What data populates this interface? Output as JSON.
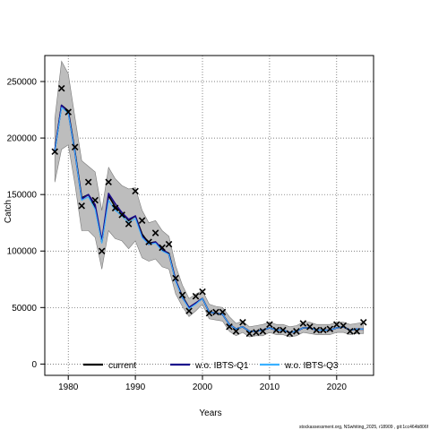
{
  "chart_data": {
    "type": "line",
    "xlabel": "Years",
    "ylabel": "Catch",
    "xlim": [
      1976.5,
      2025.5
    ],
    "ylim": [
      -10000,
      273000
    ],
    "xticks": [
      1980,
      1990,
      2000,
      2010,
      2020
    ],
    "yticks": [
      0,
      50000,
      100000,
      150000,
      200000,
      250000
    ],
    "grid": true,
    "legend_position": "bottom",
    "x": [
      1978,
      1979,
      1980,
      1981,
      1982,
      1983,
      1984,
      1985,
      1986,
      1987,
      1988,
      1989,
      1990,
      1991,
      1992,
      1993,
      1994,
      1995,
      1996,
      1997,
      1998,
      1999,
      2000,
      2001,
      2002,
      2003,
      2004,
      2005,
      2006,
      2007,
      2008,
      2009,
      2010,
      2011,
      2012,
      2013,
      2014,
      2015,
      2016,
      2017,
      2018,
      2019,
      2020,
      2021,
      2022,
      2023,
      2024
    ],
    "observed_catch": [
      188000,
      244000,
      223000,
      192000,
      140000,
      161000,
      145000,
      100000,
      161000,
      138000,
      132000,
      124000,
      153000,
      127000,
      108000,
      116000,
      103000,
      106000,
      76000,
      61000,
      47000,
      60000,
      64000,
      45000,
      46000,
      46000,
      33000,
      29000,
      37000,
      27000,
      28000,
      29000,
      35000,
      30000,
      30000,
      27000,
      29000,
      36000,
      33000,
      30000,
      30000,
      31000,
      35000,
      34000,
      29000,
      29000,
      37000
    ],
    "confidence_band": {
      "upper": [
        217000,
        268000,
        257000,
        218000,
        180000,
        175000,
        170000,
        136000,
        174000,
        164000,
        158000,
        155000,
        156000,
        136000,
        125000,
        127000,
        118000,
        113000,
        87000,
        70000,
        58000,
        62000,
        65000,
        53000,
        51000,
        50000,
        42000,
        36000,
        38000,
        33000,
        34000,
        35000,
        37000,
        35000,
        35000,
        33000,
        34000,
        37000,
        37000,
        35000,
        35000,
        35000,
        37000,
        37000,
        35000,
        36000,
        37000
      ],
      "lower": [
        161000,
        190000,
        194000,
        159000,
        118000,
        118000,
        112000,
        84000,
        118000,
        111000,
        109000,
        102000,
        109000,
        94000,
        91000,
        93000,
        86000,
        84000,
        62000,
        51000,
        42000,
        47000,
        53000,
        40000,
        39000,
        38000,
        29000,
        25000,
        28000,
        24000,
        25000,
        25000,
        28000,
        26000,
        26000,
        24000,
        25000,
        28000,
        27000,
        26000,
        26000,
        26000,
        28000,
        28000,
        26000,
        27000,
        27000
      ]
    },
    "series": [
      {
        "name": "current",
        "color": "#000000",
        "values": [
          189000,
          229000,
          224000,
          188000,
          147000,
          150000,
          139000,
          108000,
          149000,
          139000,
          134000,
          127000,
          131000,
          115000,
          107000,
          108000,
          101000,
          98000,
          74000,
          60000,
          50000,
          54000,
          58000,
          46000,
          45000,
          44000,
          35000,
          31000,
          33000,
          29000,
          29000,
          30000,
          32000,
          30000,
          30000,
          28000,
          29000,
          32000,
          32000,
          30000,
          30000,
          30000,
          32000,
          33000,
          30000,
          31000,
          31000
        ]
      },
      {
        "name": "w.o. IBTS-Q1",
        "color": "#1a0a8c",
        "values": [
          189000,
          229000,
          223000,
          187000,
          146000,
          150000,
          141000,
          109000,
          151000,
          142000,
          134000,
          128000,
          131000,
          113000,
          106000,
          108000,
          102000,
          97000,
          74000,
          59000,
          50000,
          54000,
          58000,
          46000,
          45000,
          44000,
          35000,
          31000,
          33000,
          29000,
          29000,
          30000,
          32000,
          30000,
          30000,
          28000,
          29000,
          32000,
          32000,
          30000,
          30000,
          30000,
          32000,
          33000,
          30000,
          31000,
          31000
        ]
      },
      {
        "name": "w.o. IBTS-Q3",
        "color": "#3ab0ff",
        "values": [
          188000,
          227000,
          222000,
          187000,
          145000,
          148000,
          137000,
          107000,
          145000,
          136000,
          131000,
          125000,
          129000,
          112000,
          106000,
          107000,
          100000,
          97000,
          73000,
          59000,
          49000,
          53000,
          58000,
          46000,
          45000,
          44000,
          35000,
          31000,
          33000,
          29000,
          29000,
          30000,
          32000,
          30000,
          30000,
          28000,
          29000,
          32000,
          32000,
          30000,
          30000,
          30000,
          32000,
          33000,
          30000,
          31000,
          31000
        ]
      }
    ],
    "footnote": "stockassessment.org, NSwhiting_2025, r18909 , git:1cc464b806f"
  }
}
